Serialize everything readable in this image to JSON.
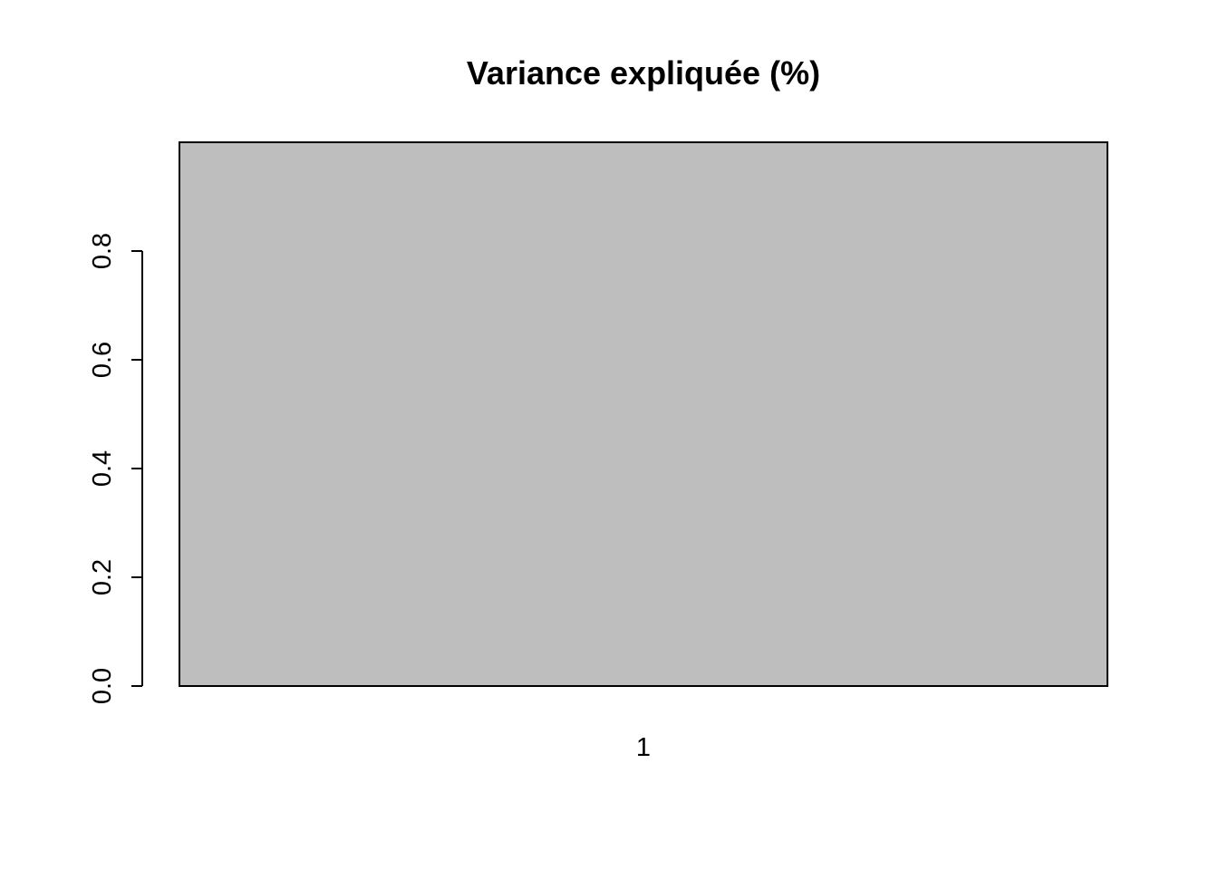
{
  "chart_data": {
    "type": "bar",
    "title": "Variance expliquée (%)",
    "xlabel": "",
    "ylabel": "",
    "categories": [
      "1"
    ],
    "values": [
      1.0
    ],
    "ylim": [
      0,
      1.0
    ],
    "yticks": [
      0.0,
      0.2,
      0.4,
      0.6,
      0.8
    ],
    "ytick_labels": [
      "0.0",
      "0.2",
      "0.4",
      "0.6",
      "0.8"
    ],
    "grid": false,
    "legend": "none",
    "bar_color": "#bebebe",
    "bar_border_color": "#000000"
  }
}
